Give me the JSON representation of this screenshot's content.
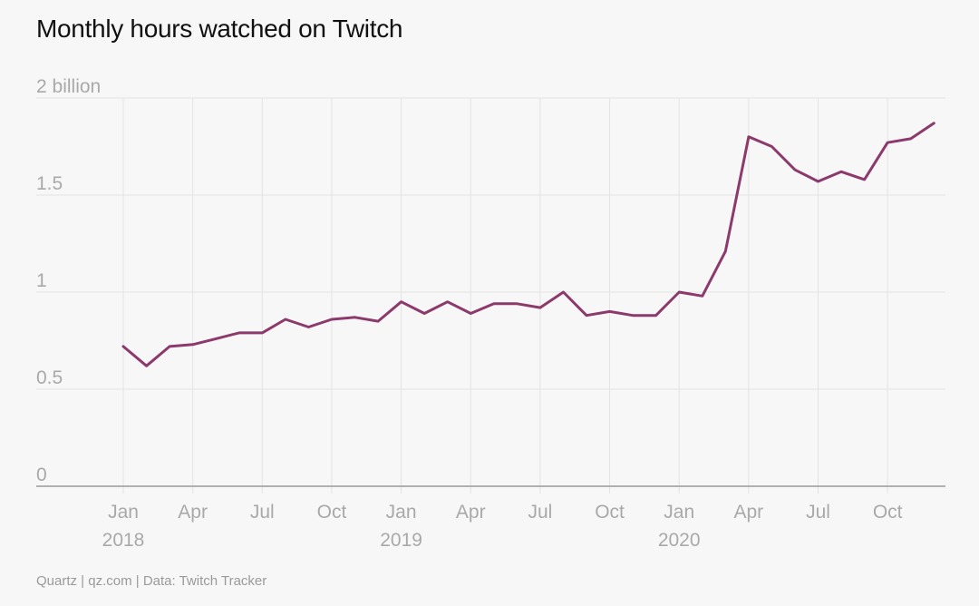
{
  "title": "Monthly hours watched on Twitch",
  "source": "Quartz | qz.com | Data: Twitch Tracker",
  "colors": {
    "line": "#8b3a6b",
    "grid": "#e3e3e3",
    "text": "#a9a9a9"
  },
  "chart_data": {
    "type": "line",
    "title": "Monthly hours watched on Twitch",
    "xlabel": "",
    "ylabel": "",
    "ylim": [
      0,
      2
    ],
    "yticks": [
      {
        "value": 0,
        "label": "0"
      },
      {
        "value": 0.5,
        "label": "0.5"
      },
      {
        "value": 1,
        "label": "1"
      },
      {
        "value": 1.5,
        "label": "1.5"
      },
      {
        "value": 2,
        "label": "2 billion"
      }
    ],
    "xticks": [
      {
        "index": 0,
        "label": "Jan",
        "year": "2018"
      },
      {
        "index": 3,
        "label": "Apr",
        "year": ""
      },
      {
        "index": 6,
        "label": "Jul",
        "year": ""
      },
      {
        "index": 9,
        "label": "Oct",
        "year": ""
      },
      {
        "index": 12,
        "label": "Jan",
        "year": "2019"
      },
      {
        "index": 15,
        "label": "Apr",
        "year": ""
      },
      {
        "index": 18,
        "label": "Jul",
        "year": ""
      },
      {
        "index": 21,
        "label": "Oct",
        "year": ""
      },
      {
        "index": 24,
        "label": "Jan",
        "year": "2020"
      },
      {
        "index": 27,
        "label": "Apr",
        "year": ""
      },
      {
        "index": 30,
        "label": "Jul",
        "year": ""
      },
      {
        "index": 33,
        "label": "Oct",
        "year": ""
      }
    ],
    "grid": true,
    "series": [
      {
        "name": "",
        "x": [
          "2018-01",
          "2018-02",
          "2018-03",
          "2018-04",
          "2018-05",
          "2018-06",
          "2018-07",
          "2018-08",
          "2018-09",
          "2018-10",
          "2018-11",
          "2018-12",
          "2019-01",
          "2019-02",
          "2019-03",
          "2019-04",
          "2019-05",
          "2019-06",
          "2019-07",
          "2019-08",
          "2019-09",
          "2019-10",
          "2019-11",
          "2019-12",
          "2020-01",
          "2020-02",
          "2020-03",
          "2020-04",
          "2020-05",
          "2020-06",
          "2020-07",
          "2020-08",
          "2020-09",
          "2020-10",
          "2020-11",
          "2020-12"
        ],
        "values": [
          0.72,
          0.62,
          0.72,
          0.73,
          0.76,
          0.79,
          0.79,
          0.86,
          0.82,
          0.86,
          0.87,
          0.85,
          0.95,
          0.89,
          0.95,
          0.89,
          0.94,
          0.94,
          0.92,
          1.0,
          0.88,
          0.9,
          0.88,
          0.88,
          1.0,
          0.98,
          1.21,
          1.8,
          1.75,
          1.63,
          1.57,
          1.62,
          1.58,
          1.77,
          1.79,
          1.87
        ]
      }
    ]
  }
}
